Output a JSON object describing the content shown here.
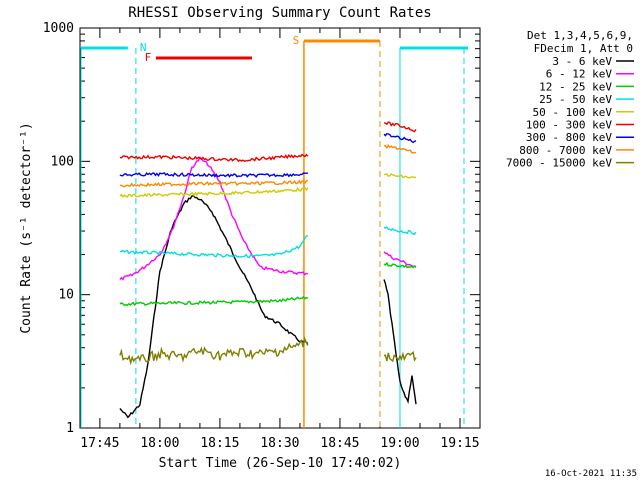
{
  "chart_data": {
    "type": "line",
    "title": "RHESSI Observing Summary Count Rates",
    "xlabel": "Start Time (26-Sep-10 17:40:02)",
    "ylabel": "Count Rate (s⁻¹ detector⁻¹)",
    "xlim": [
      "17:40:02",
      "19:20:00"
    ],
    "ylim": [
      1,
      1000
    ],
    "yscale": "log",
    "xticks": [
      "17:45",
      "18:00",
      "18:15",
      "18:30",
      "18:45",
      "19:00",
      "19:15"
    ],
    "yticks": [
      "1",
      "10",
      "100",
      "1000"
    ],
    "timestamp": "16-Oct-2021 11:35",
    "legend_header": [
      "Det 1,3,4,5,6,9,",
      "FDecim 1, Att 0"
    ],
    "legend_position": "right",
    "segments": [
      {
        "label": "N",
        "color": "#00e0e0",
        "bars": [
          [
            "17:40",
            "17:52"
          ],
          [
            "19:00",
            "19:17"
          ]
        ],
        "markers": [
          "17:54",
          "19:16"
        ]
      },
      {
        "label": "F",
        "color": "#ee0000",
        "bars": [
          [
            "17:59",
            "18:23"
          ]
        ]
      },
      {
        "label": "S",
        "color": "#ff8800",
        "bars": [
          [
            "18:36",
            "18:55"
          ]
        ],
        "markers": [
          "18:55"
        ]
      }
    ],
    "series": [
      {
        "name": "3 - 6 keV",
        "color": "#000000",
        "x": [
          "17:50",
          "17:52",
          "17:55",
          "17:57",
          "18:00",
          "18:03",
          "18:06",
          "18:08",
          "18:10",
          "18:13",
          "18:16",
          "18:20",
          "18:23",
          "18:26",
          "18:30",
          "18:33",
          "18:35",
          "18:37",
          "18:56",
          "18:57",
          "18:58",
          "18:59",
          "19:00",
          "19:01",
          "19:02",
          "19:03",
          "19:04"
        ],
        "y": [
          1.4,
          1.2,
          1.5,
          3,
          15,
          32,
          48,
          55,
          52,
          42,
          28,
          16,
          11,
          7,
          6,
          5,
          4.5,
          4.3,
          13,
          10,
          6,
          3.6,
          2.2,
          1.8,
          1.6,
          2.5,
          1.5
        ]
      },
      {
        "name": "6 - 12 keV",
        "color": "#ff00ff",
        "x": [
          "17:50",
          "17:53",
          "17:56",
          "17:58",
          "18:00",
          "18:03",
          "18:06",
          "18:08",
          "18:10",
          "18:12",
          "18:15",
          "18:18",
          "18:21",
          "18:25",
          "18:30",
          "18:35",
          "18:37",
          "18:56",
          "18:58",
          "19:00",
          "19:02",
          "19:04"
        ],
        "y": [
          13,
          14,
          16,
          18,
          20,
          30,
          55,
          90,
          105,
          95,
          70,
          40,
          25,
          16,
          15,
          14.5,
          14.5,
          21,
          19,
          18,
          17,
          16
        ]
      },
      {
        "name": "12 - 25 keV",
        "color": "#00cc00",
        "x": [
          "17:50",
          "18:00",
          "18:10",
          "18:20",
          "18:30",
          "18:37",
          "18:56",
          "19:00",
          "19:04"
        ],
        "y": [
          8.5,
          8.6,
          8.7,
          8.8,
          9,
          9.5,
          17,
          16.5,
          16
        ]
      },
      {
        "name": "25 - 50 keV",
        "color": "#00e0e0",
        "x": [
          "17:50",
          "18:00",
          "18:10",
          "18:20",
          "18:25",
          "18:30",
          "18:35",
          "18:37",
          "18:56",
          "19:00",
          "19:04"
        ],
        "y": [
          21,
          20.5,
          20,
          19.5,
          19.5,
          20,
          23,
          28,
          32,
          30,
          29
        ]
      },
      {
        "name": "50 - 100 keV",
        "color": "#cccc00",
        "x": [
          "17:50",
          "18:00",
          "18:10",
          "18:20",
          "18:30",
          "18:37",
          "18:56",
          "19:00",
          "19:04"
        ],
        "y": [
          55,
          56,
          57,
          58,
          60,
          62,
          80,
          77,
          75
        ]
      },
      {
        "name": "100 - 300 keV",
        "color": "#ee0000",
        "x": [
          "17:50",
          "18:00",
          "18:10",
          "18:20",
          "18:30",
          "18:37",
          "18:56",
          "19:00",
          "19:04"
        ],
        "y": [
          107,
          108,
          105,
          102,
          107,
          112,
          195,
          185,
          170
        ]
      },
      {
        "name": "300 - 800 keV",
        "color": "#0000ee",
        "x": [
          "17:50",
          "18:00",
          "18:10",
          "18:20",
          "18:30",
          "18:37",
          "18:56",
          "19:00",
          "19:04"
        ],
        "y": [
          79,
          80,
          79,
          78,
          79,
          80,
          160,
          150,
          140
        ]
      },
      {
        "name": "800 - 7000 keV",
        "color": "#ff8800",
        "x": [
          "17:50",
          "18:00",
          "18:10",
          "18:20",
          "18:30",
          "18:37",
          "18:56",
          "19:00",
          "19:04"
        ],
        "y": [
          66,
          67,
          68,
          68,
          69,
          70,
          130,
          125,
          115
        ]
      },
      {
        "name": "7000 - 15000 keV",
        "color": "#808000",
        "x": [
          "17:50",
          "17:55",
          "18:00",
          "18:05",
          "18:10",
          "18:15",
          "18:20",
          "18:25",
          "18:30",
          "18:35",
          "18:37",
          "18:56",
          "19:00",
          "19:04"
        ],
        "y": [
          3.5,
          3.2,
          3.6,
          3.4,
          3.8,
          3.5,
          3.7,
          3.6,
          3.8,
          4.2,
          4.5,
          3.5,
          3.3,
          3.5
        ]
      }
    ]
  }
}
